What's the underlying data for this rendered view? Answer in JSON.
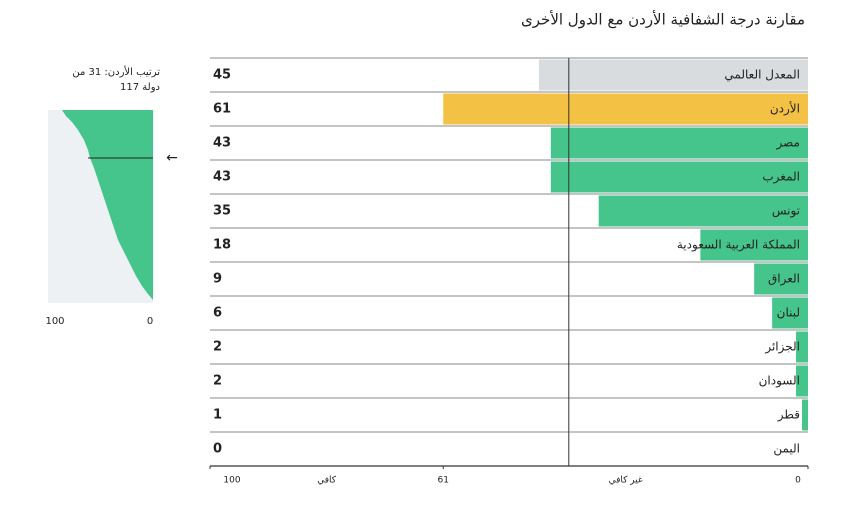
{
  "chart_data": {
    "type": "bar",
    "orientation": "horizontal",
    "title": "مقارنة درجة الشفافية الأردن مع الدول الأخرى",
    "categories": [
      "المعدل العالمي",
      "الأردن",
      "مصر",
      "المغرب",
      "تونس",
      "المملكة العربية السعودية",
      "العراق",
      "لبنان",
      "الجزائر",
      "السودان",
      "قطر",
      "اليمن"
    ],
    "values": [
      45,
      61,
      43,
      43,
      35,
      18,
      9,
      6,
      2,
      2,
      1,
      0
    ],
    "colors": [
      "#d8dcdf",
      "#f3c244",
      "#45c58c",
      "#45c58c",
      "#45c58c",
      "#45c58c",
      "#45c58c",
      "#45c58c",
      "#45c58c",
      "#45c58c",
      "#45c58c",
      "#45c58c"
    ],
    "xlim": [
      100,
      0
    ],
    "xticks": [
      100,
      61,
      0
    ],
    "zone_labels": [
      "كافي",
      "غير كافي"
    ],
    "reference_line": 40,
    "inset": {
      "label_lines": [
        "ترتيب الأردن: 31 من",
        "117 دولة"
      ],
      "xticks": [
        100,
        0
      ]
    }
  }
}
